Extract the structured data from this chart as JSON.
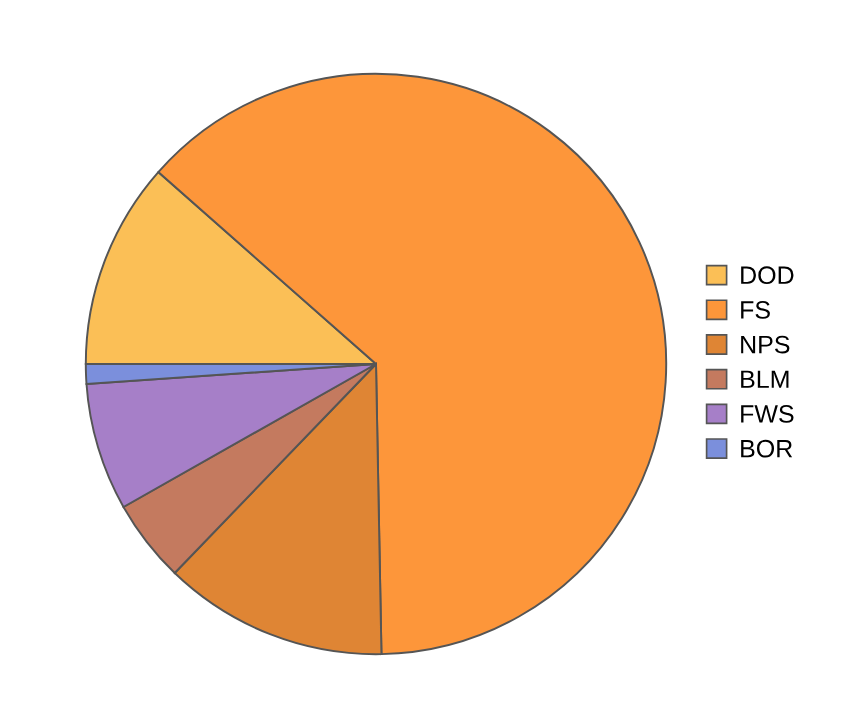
{
  "chart_data": {
    "type": "pie",
    "categories": [
      "DOD",
      "FS",
      "NPS",
      "BLM",
      "FWS",
      "BOR"
    ],
    "values": [
      11.5,
      63.2,
      12.5,
      4.6,
      7.1,
      1.1
    ],
    "colors": [
      "#fbbf56",
      "#fd963a",
      "#df8534",
      "#c47a5f",
      "#a67fc8",
      "#7b8fdc"
    ],
    "legend": "right"
  }
}
